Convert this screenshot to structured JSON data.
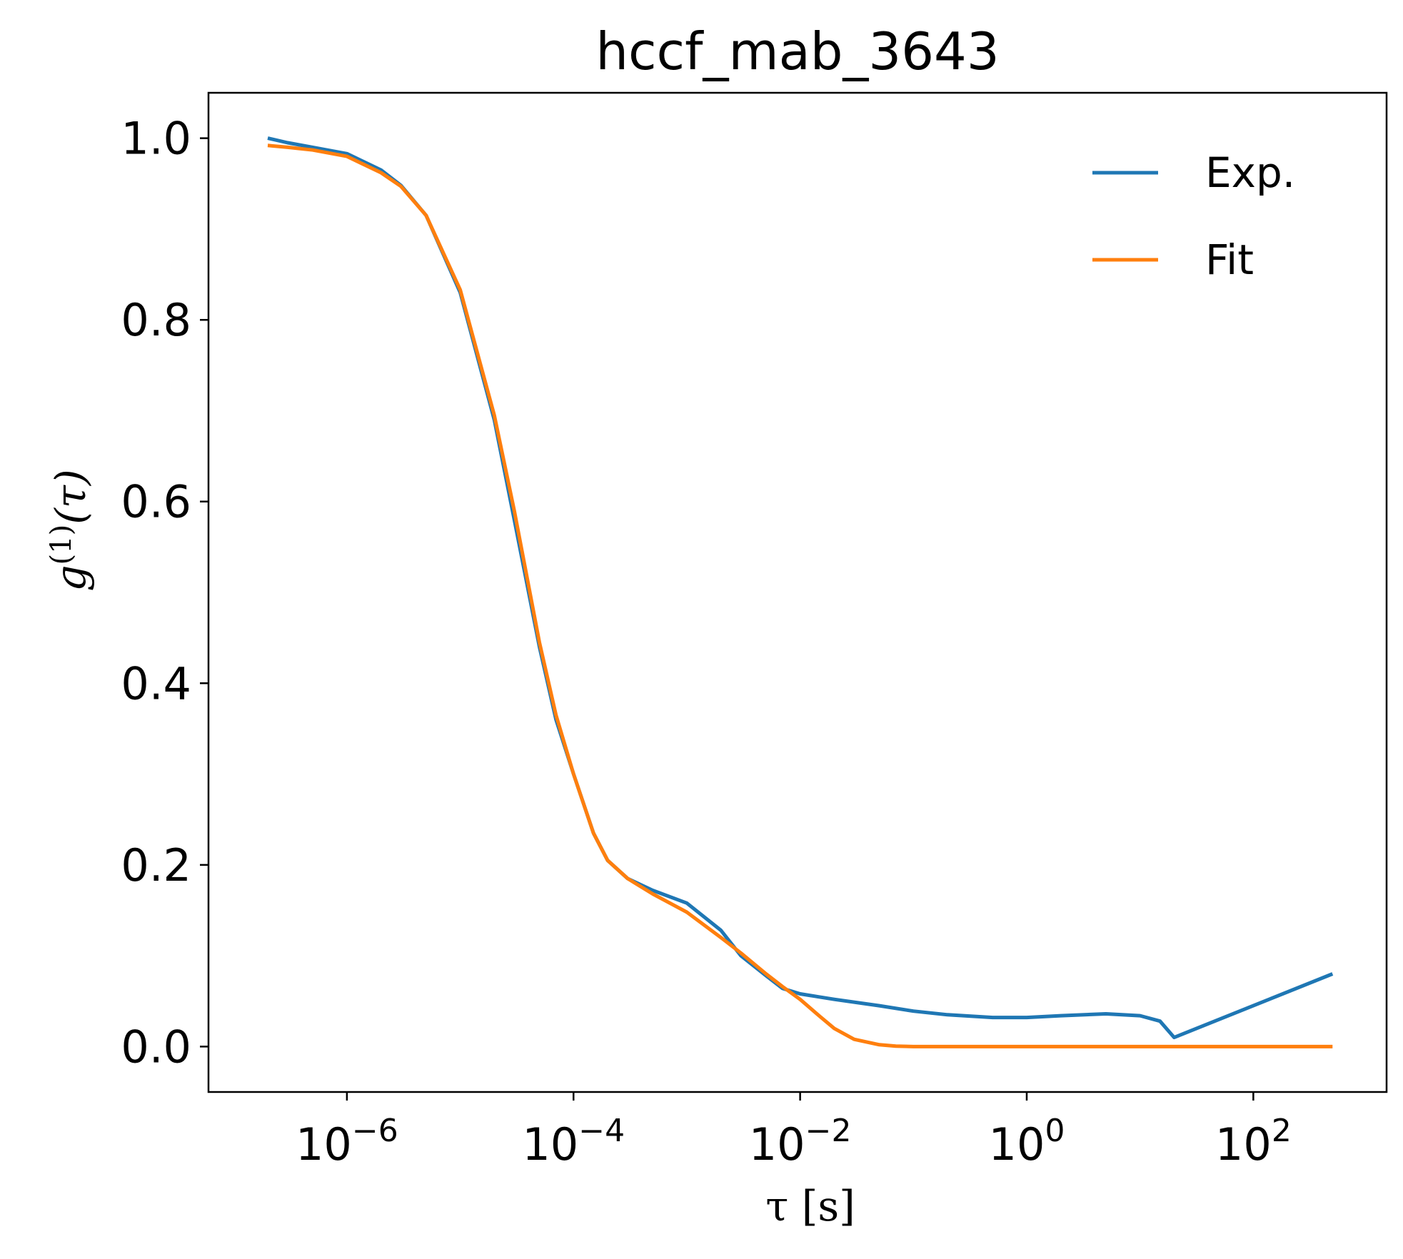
{
  "chart_data": {
    "type": "line",
    "title": "hccf_mab_3643",
    "xlabel": "τ [s]",
    "ylabel": "g(1)(τ)",
    "xscale": "log",
    "xlim": [
      6e-08,
      1500
    ],
    "ylim": [
      -0.05,
      1.05
    ],
    "x_ticks": [
      1e-06,
      0.0001,
      0.01,
      1,
      100
    ],
    "x_tick_labels": [
      {
        "base": "10",
        "exp": "−6"
      },
      {
        "base": "10",
        "exp": "−4"
      },
      {
        "base": "10",
        "exp": "−2"
      },
      {
        "base": "10",
        "exp": "0"
      },
      {
        "base": "10",
        "exp": "2"
      }
    ],
    "y_ticks": [
      0.0,
      0.2,
      0.4,
      0.6,
      0.8,
      1.0
    ],
    "y_tick_labels": [
      "0.0",
      "0.2",
      "0.4",
      "0.6",
      "0.8",
      "1.0"
    ],
    "grid": false,
    "legend_position": "top-right",
    "series": [
      {
        "name": "Exp.",
        "color": "#1f77b4",
        "x": [
          2e-07,
          3e-07,
          5e-07,
          1e-06,
          2e-06,
          3e-06,
          5e-06,
          1e-05,
          2e-05,
          3e-05,
          5e-05,
          7e-05,
          0.0001,
          0.00015,
          0.0002,
          0.0003,
          0.0005,
          0.001,
          0.002,
          0.003,
          0.005,
          0.007,
          0.01,
          0.02,
          0.05,
          0.1,
          0.2,
          0.5,
          1,
          2,
          5,
          10,
          15,
          20,
          500
        ],
        "y": [
          1.0,
          0.995,
          0.99,
          0.983,
          0.965,
          0.948,
          0.915,
          0.83,
          0.69,
          0.58,
          0.44,
          0.36,
          0.3,
          0.235,
          0.205,
          0.185,
          0.172,
          0.158,
          0.128,
          0.1,
          0.078,
          0.064,
          0.058,
          0.052,
          0.045,
          0.039,
          0.035,
          0.032,
          0.032,
          0.034,
          0.036,
          0.034,
          0.028,
          0.01,
          0.08
        ]
      },
      {
        "name": "Fit",
        "color": "#ff7f0e",
        "x": [
          2e-07,
          3e-07,
          5e-07,
          1e-06,
          2e-06,
          3e-06,
          5e-06,
          1e-05,
          2e-05,
          3e-05,
          5e-05,
          7e-05,
          0.0001,
          0.00015,
          0.0002,
          0.0003,
          0.0005,
          0.001,
          0.002,
          0.003,
          0.005,
          0.007,
          0.01,
          0.015,
          0.02,
          0.03,
          0.05,
          0.07,
          0.1,
          0.2,
          1,
          10,
          100,
          500
        ],
        "y": [
          0.992,
          0.99,
          0.987,
          0.98,
          0.962,
          0.947,
          0.915,
          0.833,
          0.695,
          0.59,
          0.445,
          0.365,
          0.3,
          0.235,
          0.205,
          0.185,
          0.168,
          0.148,
          0.12,
          0.103,
          0.08,
          0.066,
          0.052,
          0.033,
          0.02,
          0.008,
          0.002,
          0.0005,
          0.0,
          0.0,
          0.0,
          0.0,
          0.0,
          0.0
        ]
      }
    ]
  }
}
